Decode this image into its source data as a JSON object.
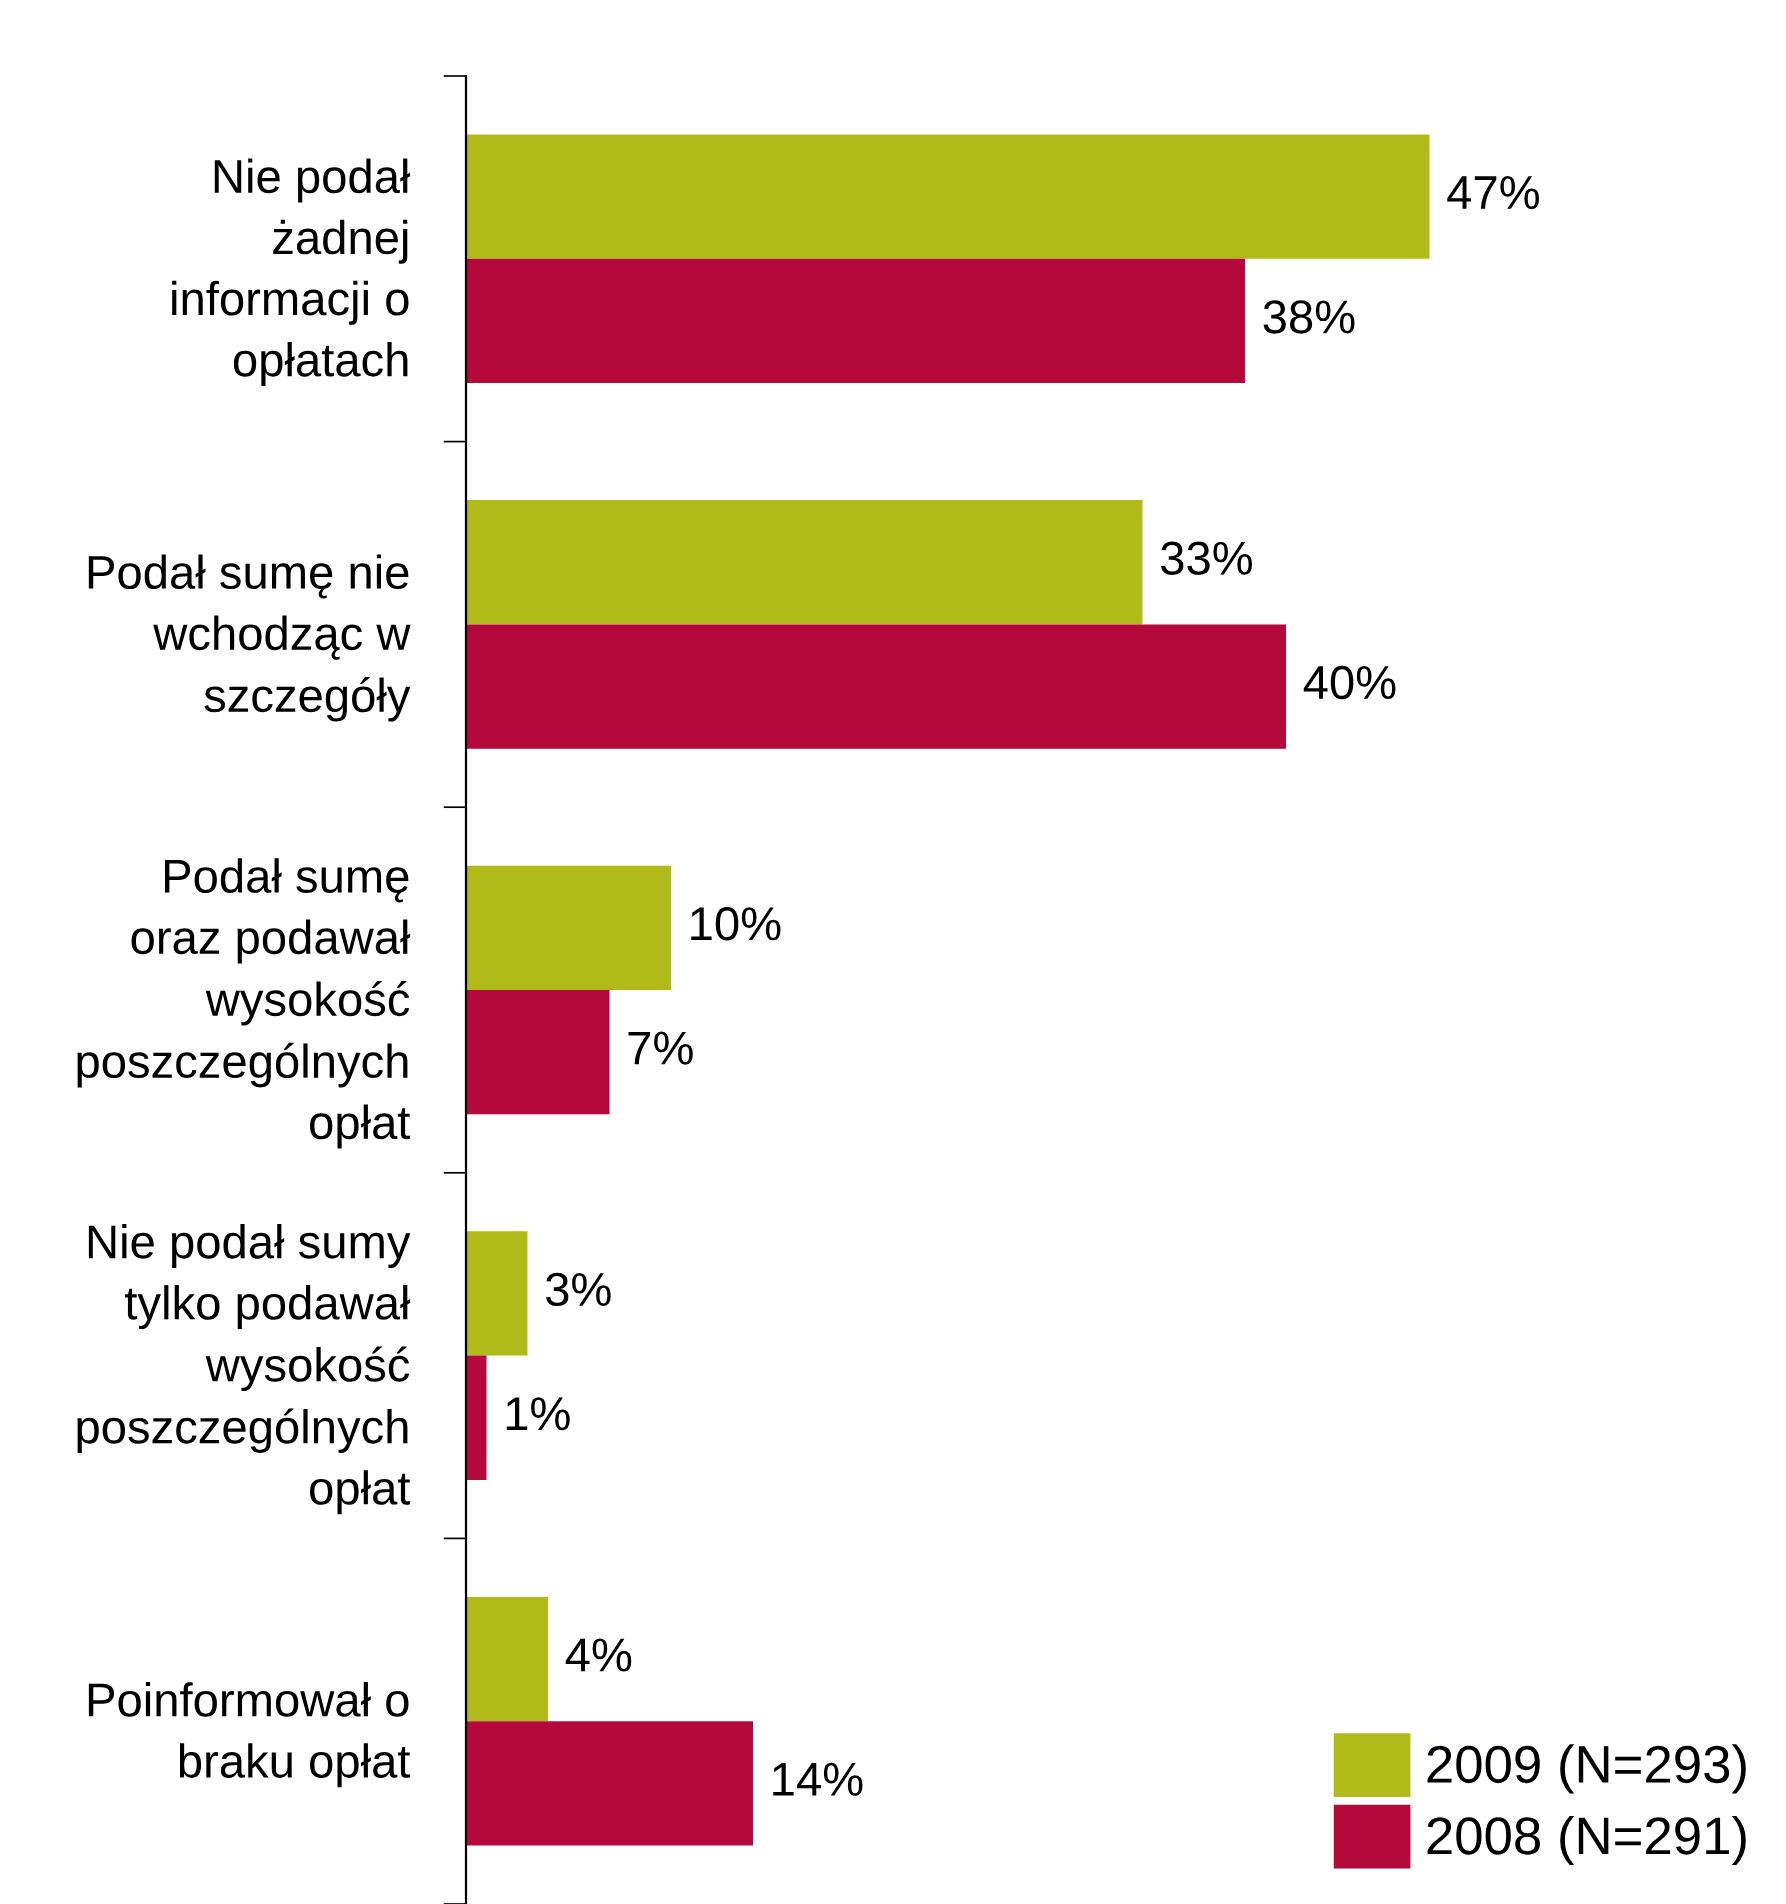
{
  "chart_data": {
    "type": "bar",
    "orientation": "horizontal",
    "categories": [
      "Nie podał\nżadnej\ninformacji o\nopłatach",
      "Podał sumę nie\nwchodząc w\nszczegóły",
      "Podał sumę\noraz podawał\nwysokość\nposzczególnych\nopłat",
      "Nie podał sumy\ntylko podawał\nwysokość\nposzczególnych\nopłat",
      "Poinformował o\nbraku opłat"
    ],
    "series": [
      {
        "name": "2009 (N=293)",
        "color": "#b0bb1a",
        "values": [
          47,
          33,
          10,
          3,
          4
        ],
        "value_labels": [
          "47%",
          "33%",
          "10%",
          "3%",
          "4%"
        ]
      },
      {
        "name": "2008 (N=291)",
        "color": "#b5093c",
        "values": [
          38,
          40,
          7,
          1,
          14
        ],
        "value_labels": [
          "38%",
          "40%",
          "7%",
          "1%",
          "14%"
        ]
      }
    ],
    "legend": "bottom right",
    "grid": false,
    "tick_labels": "y"
  }
}
